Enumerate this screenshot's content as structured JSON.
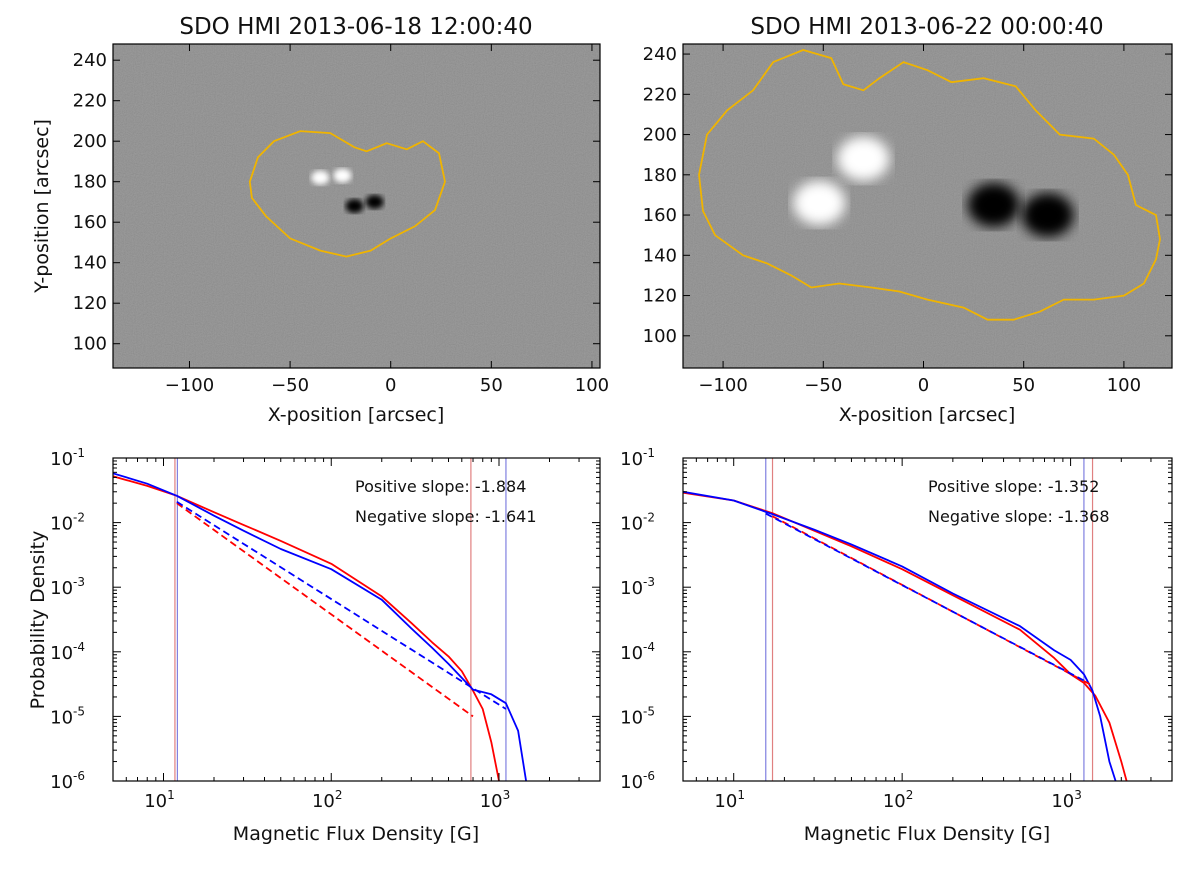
{
  "chart_data": [
    {
      "type": "heatmap",
      "title": "SDO HMI 2013-06-18 12:00:40",
      "xlabel": "X-position [arcsec]",
      "ylabel": "Y-position [arcsec]",
      "xlim": [
        -138,
        104
      ],
      "ylim": [
        88,
        248
      ],
      "xticks": [
        -100,
        -50,
        0,
        50,
        100
      ],
      "xtick_labels": [
        "−100",
        "−50",
        "0",
        "50",
        "100"
      ],
      "yticks": [
        100,
        120,
        140,
        160,
        180,
        200,
        220,
        240
      ],
      "ytick_labels": [
        "100",
        "120",
        "140",
        "160",
        "180",
        "200",
        "220",
        "240"
      ],
      "contour_color": "#f0b400",
      "contour": [
        [
          -70,
          180
        ],
        [
          -66,
          192
        ],
        [
          -58,
          200
        ],
        [
          -45,
          205
        ],
        [
          -30,
          204
        ],
        [
          -18,
          197
        ],
        [
          -12,
          195
        ],
        [
          -2,
          199
        ],
        [
          8,
          196
        ],
        [
          16,
          200
        ],
        [
          24,
          194
        ],
        [
          27,
          180
        ],
        [
          22,
          166
        ],
        [
          12,
          158
        ],
        [
          0,
          152
        ],
        [
          -10,
          146
        ],
        [
          -22,
          143
        ],
        [
          -35,
          146
        ],
        [
          -50,
          152
        ],
        [
          -62,
          163
        ],
        [
          -69,
          172
        ],
        [
          -70,
          180
        ]
      ],
      "spots": [
        {
          "x": -35,
          "y": 182,
          "polarity": "positive"
        },
        {
          "x": -24,
          "y": 183,
          "polarity": "positive"
        },
        {
          "x": -18,
          "y": 168,
          "polarity": "negative"
        },
        {
          "x": -8,
          "y": 170,
          "polarity": "negative"
        }
      ]
    },
    {
      "type": "heatmap",
      "title": "SDO HMI 2013-06-22 00:00:40",
      "xlabel": "X-position [arcsec]",
      "ylabel": "",
      "xlim": [
        -120,
        124
      ],
      "ylim": [
        84,
        245
      ],
      "xticks": [
        -100,
        -50,
        0,
        50,
        100
      ],
      "xtick_labels": [
        "−100",
        "−50",
        "0",
        "50",
        "100"
      ],
      "yticks": [
        100,
        120,
        140,
        160,
        180,
        200,
        220,
        240
      ],
      "ytick_labels": [
        "100",
        "120",
        "140",
        "160",
        "180",
        "200",
        "220",
        "240"
      ],
      "contour_color": "#f0b400",
      "contour": [
        [
          -112,
          180
        ],
        [
          -108,
          200
        ],
        [
          -98,
          212
        ],
        [
          -85,
          222
        ],
        [
          -75,
          236
        ],
        [
          -60,
          242
        ],
        [
          -46,
          238
        ],
        [
          -40,
          225
        ],
        [
          -30,
          222
        ],
        [
          -22,
          228
        ],
        [
          -10,
          236
        ],
        [
          2,
          232
        ],
        [
          14,
          226
        ],
        [
          30,
          228
        ],
        [
          46,
          224
        ],
        [
          56,
          212
        ],
        [
          68,
          200
        ],
        [
          85,
          198
        ],
        [
          95,
          190
        ],
        [
          102,
          180
        ],
        [
          106,
          165
        ],
        [
          116,
          160
        ],
        [
          118,
          148
        ],
        [
          116,
          138
        ],
        [
          110,
          126
        ],
        [
          100,
          120
        ],
        [
          85,
          118
        ],
        [
          70,
          118
        ],
        [
          58,
          112
        ],
        [
          45,
          108
        ],
        [
          32,
          108
        ],
        [
          20,
          114
        ],
        [
          2,
          118
        ],
        [
          -12,
          122
        ],
        [
          -26,
          124
        ],
        [
          -42,
          126
        ],
        [
          -56,
          124
        ],
        [
          -66,
          130
        ],
        [
          -78,
          136
        ],
        [
          -90,
          140
        ],
        [
          -104,
          150
        ],
        [
          -110,
          162
        ],
        [
          -112,
          180
        ]
      ],
      "spots": [
        {
          "x": -52,
          "y": 166,
          "polarity": "positive"
        },
        {
          "x": -30,
          "y": 188,
          "polarity": "positive"
        },
        {
          "x": 35,
          "y": 165,
          "polarity": "negative"
        },
        {
          "x": 62,
          "y": 160,
          "polarity": "negative"
        }
      ]
    },
    {
      "type": "line",
      "xscale": "log",
      "yscale": "log",
      "xlabel": "Magnetic Flux Density [G]",
      "ylabel": "Probability Density",
      "xlim": [
        5,
        4000
      ],
      "ylim": [
        1e-06,
        0.1
      ],
      "xtick_labels": {
        "base": [
          "10",
          "10",
          "10"
        ],
        "exp": [
          "1",
          "2",
          "3"
        ]
      },
      "ytick_labels": {
        "base": [
          "10",
          "10",
          "10",
          "10",
          "10",
          "10"
        ],
        "exp": [
          "-1",
          "-2",
          "-3",
          "-4",
          "-5",
          "-6"
        ]
      },
      "annotations": [
        "Positive slope: -1.884",
        "Negative slope: -1.641"
      ],
      "vlines": [
        {
          "x": 11.7,
          "color": "#e08080"
        },
        {
          "x": 12.1,
          "color": "#8080e0"
        },
        {
          "x": 680,
          "color": "#e08080"
        },
        {
          "x": 1100,
          "color": "#8080e0"
        }
      ],
      "series": [
        {
          "name": "positive",
          "color": "#ff0000",
          "style": "solid",
          "points": [
            [
              5,
              0.052
            ],
            [
              8,
              0.037
            ],
            [
              12,
              0.026
            ],
            [
              20,
              0.0145
            ],
            [
              30,
              0.0092
            ],
            [
              50,
              0.0052
            ],
            [
              100,
              0.0023
            ],
            [
              200,
              0.00072
            ],
            [
              300,
              0.00028
            ],
            [
              400,
              0.00014
            ],
            [
              500,
              8.5e-05
            ],
            [
              600,
              5e-05
            ],
            [
              700,
              2.5e-05
            ],
            [
              800,
              1.3e-05
            ],
            [
              900,
              4e-06
            ],
            [
              1000,
              1e-06
            ]
          ]
        },
        {
          "name": "negative",
          "color": "#0000ff",
          "style": "solid",
          "points": [
            [
              5,
              0.058
            ],
            [
              8,
              0.04
            ],
            [
              12,
              0.026
            ],
            [
              20,
              0.0128
            ],
            [
              30,
              0.0075
            ],
            [
              50,
              0.0039
            ],
            [
              100,
              0.0019
            ],
            [
              200,
              0.00064
            ],
            [
              300,
              0.00023
            ],
            [
              400,
              0.000115
            ],
            [
              500,
              6.5e-05
            ],
            [
              700,
              2.6e-05
            ],
            [
              900,
              2.2e-05
            ],
            [
              1100,
              1.6e-05
            ],
            [
              1300,
              6e-06
            ],
            [
              1450,
              1e-06
            ]
          ]
        },
        {
          "name": "positive fit",
          "color": "#ff0000",
          "style": "dashed",
          "points": [
            [
              12,
              0.02
            ],
            [
              700,
              1e-05
            ]
          ]
        },
        {
          "name": "negative fit",
          "color": "#0000ff",
          "style": "dashed",
          "points": [
            [
              12,
              0.021
            ],
            [
              1100,
              1.3e-05
            ]
          ]
        }
      ]
    },
    {
      "type": "line",
      "xscale": "log",
      "yscale": "log",
      "xlabel": "Magnetic Flux Density [G]",
      "ylabel": "",
      "xlim": [
        5,
        4000
      ],
      "ylim": [
        1e-06,
        0.1
      ],
      "xtick_labels": {
        "base": [
          "10",
          "10",
          "10"
        ],
        "exp": [
          "1",
          "2",
          "3"
        ]
      },
      "ytick_labels": {
        "base": [
          "10",
          "10",
          "10",
          "10",
          "10",
          "10"
        ],
        "exp": [
          "-1",
          "-2",
          "-3",
          "-4",
          "-5",
          "-6"
        ]
      },
      "annotations": [
        "Positive slope: -1.352",
        "Negative slope: -1.368"
      ],
      "vlines": [
        {
          "x": 15.5,
          "color": "#8080e0"
        },
        {
          "x": 17,
          "color": "#e08080"
        },
        {
          "x": 1200,
          "color": "#8080e0"
        },
        {
          "x": 1350,
          "color": "#e08080"
        }
      ],
      "series": [
        {
          "name": "positive",
          "color": "#ff0000",
          "style": "solid",
          "points": [
            [
              5,
              0.029
            ],
            [
              10,
              0.022
            ],
            [
              17,
              0.014
            ],
            [
              30,
              0.0075
            ],
            [
              50,
              0.0043
            ],
            [
              100,
              0.0019
            ],
            [
              200,
              0.00075
            ],
            [
              500,
              0.00022
            ],
            [
              800,
              8e-05
            ],
            [
              1000,
              4.5e-05
            ],
            [
              1200,
              3.3e-05
            ],
            [
              1400,
              2.1e-05
            ],
            [
              1700,
              8e-06
            ],
            [
              2000,
              2e-06
            ],
            [
              2150,
              1e-06
            ]
          ]
        },
        {
          "name": "negative",
          "color": "#0000ff",
          "style": "solid",
          "points": [
            [
              5,
              0.03
            ],
            [
              10,
              0.022
            ],
            [
              17,
              0.0135
            ],
            [
              30,
              0.0078
            ],
            [
              50,
              0.0046
            ],
            [
              100,
              0.0021
            ],
            [
              200,
              0.0008
            ],
            [
              500,
              0.00025
            ],
            [
              800,
              0.000105
            ],
            [
              1000,
              7.5e-05
            ],
            [
              1200,
              4.5e-05
            ],
            [
              1350,
              2.5e-05
            ],
            [
              1500,
              1e-05
            ],
            [
              1700,
              2e-06
            ],
            [
              1850,
              1e-06
            ]
          ]
        },
        {
          "name": "positive fit",
          "color": "#ff0000",
          "style": "dashed",
          "points": [
            [
              17,
              0.0125
            ],
            [
              1350,
              3e-05
            ]
          ]
        },
        {
          "name": "negative fit",
          "color": "#0000ff",
          "style": "dashed",
          "points": [
            [
              15.5,
              0.0138
            ],
            [
              1200,
              3.6e-05
            ]
          ]
        }
      ]
    }
  ]
}
